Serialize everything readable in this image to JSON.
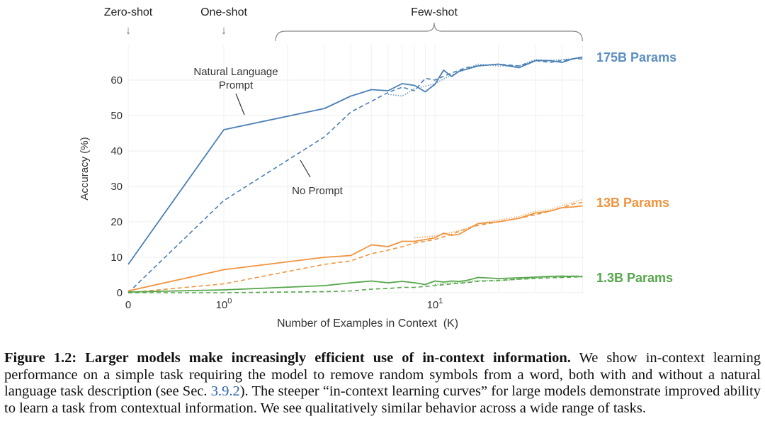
{
  "chart_data": {
    "type": "line",
    "x_scale": "symlog",
    "xlabel": "Number of Examples in Context  (K)",
    "ylabel": "Accuracy (%)",
    "xlim": [
      0,
      50
    ],
    "ylim": [
      0,
      70
    ],
    "y_ticks": [
      0,
      10,
      20,
      30,
      40,
      50,
      60
    ],
    "x_ticks": [
      {
        "value": 0,
        "label": "0",
        "exp": ""
      },
      {
        "value": 1,
        "label": "10",
        "exp": "0"
      },
      {
        "value": 10,
        "label": "10",
        "exp": "1"
      }
    ],
    "grid": true,
    "regions": [
      {
        "label": "Zero-shot",
        "x": 0,
        "marker": "↓"
      },
      {
        "label": "One-shot",
        "x": 1,
        "marker": "↓"
      },
      {
        "label": "Few-shot",
        "x_range": [
          1.8,
          50
        ],
        "marker": "brace"
      }
    ],
    "annotations": [
      {
        "text": "Natural Language\nPrompt",
        "target_series": "175B prompt"
      },
      {
        "text": "No Prompt",
        "target_series": "175B no prompt"
      }
    ],
    "model_labels": [
      {
        "text": "175B Params",
        "color": "#5b8ec1"
      },
      {
        "text": "13B Params",
        "color": "#f0933e"
      },
      {
        "text": "1.3B Params",
        "color": "#55a64a"
      }
    ],
    "series": [
      {
        "model": "175B",
        "style": "solid",
        "color": "#4a7fb5",
        "points": [
          [
            0,
            8
          ],
          [
            1,
            46
          ],
          [
            3,
            52
          ],
          [
            4,
            55.5
          ],
          [
            5,
            57.3
          ],
          [
            6,
            57
          ],
          [
            7,
            59
          ],
          [
            8,
            58.5
          ],
          [
            9,
            56.7
          ],
          [
            10,
            58.8
          ],
          [
            11,
            62.8
          ],
          [
            12,
            61
          ],
          [
            13,
            62.5
          ],
          [
            14,
            63
          ],
          [
            16,
            64
          ],
          [
            20,
            64.5
          ],
          [
            25,
            63.5
          ],
          [
            30,
            65.5
          ],
          [
            35,
            65.5
          ],
          [
            40,
            65
          ],
          [
            45,
            66
          ],
          [
            50,
            66.5
          ]
        ]
      },
      {
        "model": "175B",
        "style": "dashed",
        "color": "#4a7fb5",
        "points": [
          [
            0,
            0
          ],
          [
            1,
            26
          ],
          [
            3,
            44
          ],
          [
            4,
            51
          ],
          [
            5,
            54
          ],
          [
            6,
            56.5
          ],
          [
            7,
            58
          ],
          [
            8,
            57
          ],
          [
            9,
            60.5
          ],
          [
            10,
            60
          ],
          [
            12,
            62
          ],
          [
            14,
            63.5
          ],
          [
            16,
            64
          ],
          [
            20,
            64.5
          ],
          [
            25,
            64
          ],
          [
            30,
            65.5
          ],
          [
            35,
            65
          ],
          [
            40,
            65.5
          ],
          [
            45,
            66
          ],
          [
            50,
            66
          ]
        ]
      },
      {
        "model": "175B",
        "style": "dotted",
        "color": "#4a7fb5",
        "points": [
          [
            6,
            56
          ],
          [
            7,
            55.5
          ],
          [
            8,
            57.5
          ],
          [
            10,
            59
          ],
          [
            12,
            61.5
          ],
          [
            14,
            63
          ],
          [
            16,
            64.5
          ],
          [
            20,
            64
          ],
          [
            25,
            64
          ],
          [
            30,
            65.8
          ],
          [
            35,
            65.5
          ],
          [
            40,
            65.8
          ],
          [
            45,
            66
          ],
          [
            50,
            66.5
          ]
        ]
      },
      {
        "model": "13B",
        "style": "solid",
        "color": "#f0933e",
        "points": [
          [
            0,
            0.5
          ],
          [
            1,
            6.5
          ],
          [
            3,
            10
          ],
          [
            4,
            10.5
          ],
          [
            5,
            13.5
          ],
          [
            6,
            13
          ],
          [
            7,
            14.5
          ],
          [
            8,
            14.5
          ],
          [
            9,
            15
          ],
          [
            10,
            15.5
          ],
          [
            11,
            16.8
          ],
          [
            12,
            16.2
          ],
          [
            13,
            16.5
          ],
          [
            14,
            17.5
          ],
          [
            16,
            19.5
          ],
          [
            20,
            20
          ],
          [
            25,
            21
          ],
          [
            30,
            22.5
          ],
          [
            35,
            23
          ],
          [
            40,
            24
          ],
          [
            45,
            24.2
          ],
          [
            50,
            24.5
          ]
        ]
      },
      {
        "model": "13B",
        "style": "dashed",
        "color": "#f0933e",
        "points": [
          [
            0,
            0
          ],
          [
            1,
            2.5
          ],
          [
            3,
            8
          ],
          [
            4,
            9
          ],
          [
            5,
            11
          ],
          [
            6,
            12
          ],
          [
            7,
            13
          ],
          [
            8,
            14
          ],
          [
            9,
            14.5
          ],
          [
            10,
            15
          ],
          [
            12,
            16.5
          ],
          [
            14,
            18
          ],
          [
            16,
            19
          ],
          [
            20,
            20
          ],
          [
            25,
            21
          ],
          [
            30,
            22
          ],
          [
            35,
            23
          ],
          [
            40,
            24
          ],
          [
            45,
            25
          ],
          [
            50,
            25.5
          ]
        ]
      },
      {
        "model": "13B",
        "style": "dotted",
        "color": "#f0933e",
        "points": [
          [
            8,
            15.5
          ],
          [
            10,
            16
          ],
          [
            12,
            17
          ],
          [
            14,
            18
          ],
          [
            16,
            19.5
          ],
          [
            20,
            20.5
          ],
          [
            25,
            21.5
          ],
          [
            30,
            23
          ],
          [
            35,
            23.5
          ],
          [
            40,
            24.5
          ],
          [
            45,
            25.5
          ],
          [
            50,
            26.3
          ]
        ]
      },
      {
        "model": "1.3B",
        "style": "solid",
        "color": "#55a64a",
        "points": [
          [
            0,
            0.2
          ],
          [
            1,
            0.8
          ],
          [
            3,
            2
          ],
          [
            4,
            2.8
          ],
          [
            5,
            3.3
          ],
          [
            6,
            2.8
          ],
          [
            7,
            3.2
          ],
          [
            8,
            2.8
          ],
          [
            9,
            2.3
          ],
          [
            10,
            3.3
          ],
          [
            11,
            3
          ],
          [
            12,
            3.3
          ],
          [
            13,
            3.2
          ],
          [
            14,
            3.4
          ],
          [
            16,
            4.3
          ],
          [
            20,
            4
          ],
          [
            25,
            4.2
          ],
          [
            30,
            4.4
          ],
          [
            35,
            4.6
          ],
          [
            40,
            4.7
          ],
          [
            45,
            4.6
          ],
          [
            50,
            4.5
          ]
        ]
      },
      {
        "model": "1.3B",
        "style": "dashed",
        "color": "#55a64a",
        "points": [
          [
            0,
            0
          ],
          [
            1,
            0
          ],
          [
            3,
            0.3
          ],
          [
            4,
            0.5
          ],
          [
            5,
            1
          ],
          [
            6,
            1.2
          ],
          [
            7,
            1.5
          ],
          [
            8,
            1.5
          ],
          [
            10,
            2
          ],
          [
            12,
            2.5
          ],
          [
            14,
            2.8
          ],
          [
            16,
            3.2
          ],
          [
            20,
            3.5
          ],
          [
            25,
            3.8
          ],
          [
            30,
            4
          ],
          [
            35,
            4.2
          ],
          [
            40,
            4.3
          ],
          [
            45,
            4.4
          ],
          [
            50,
            4.5
          ]
        ]
      },
      {
        "model": "1.3B",
        "style": "dotted",
        "color": "#55a64a",
        "points": [
          [
            10,
            2.3
          ],
          [
            12,
            2.8
          ],
          [
            14,
            3
          ],
          [
            16,
            3.5
          ],
          [
            20,
            3.3
          ],
          [
            25,
            3.8
          ],
          [
            30,
            4.2
          ],
          [
            35,
            4.5
          ],
          [
            40,
            4.4
          ],
          [
            45,
            4.8
          ],
          [
            50,
            4.7
          ]
        ]
      }
    ]
  },
  "caption": {
    "lead": "Figure 1.2: Larger models make increasingly efficient use of in-context information.",
    "text1": " We show in-context learning performance on a simple task requiring the model to remove random symbols from a word, both with and without a natural language task description (see Sec. ",
    "ref": "3.9.2",
    "text2": "). The steeper “in-context learning curves” for large models demonstrate improved ability to learn a task from contextual information. We see qualitatively similar behavior across a wide range of tasks."
  }
}
